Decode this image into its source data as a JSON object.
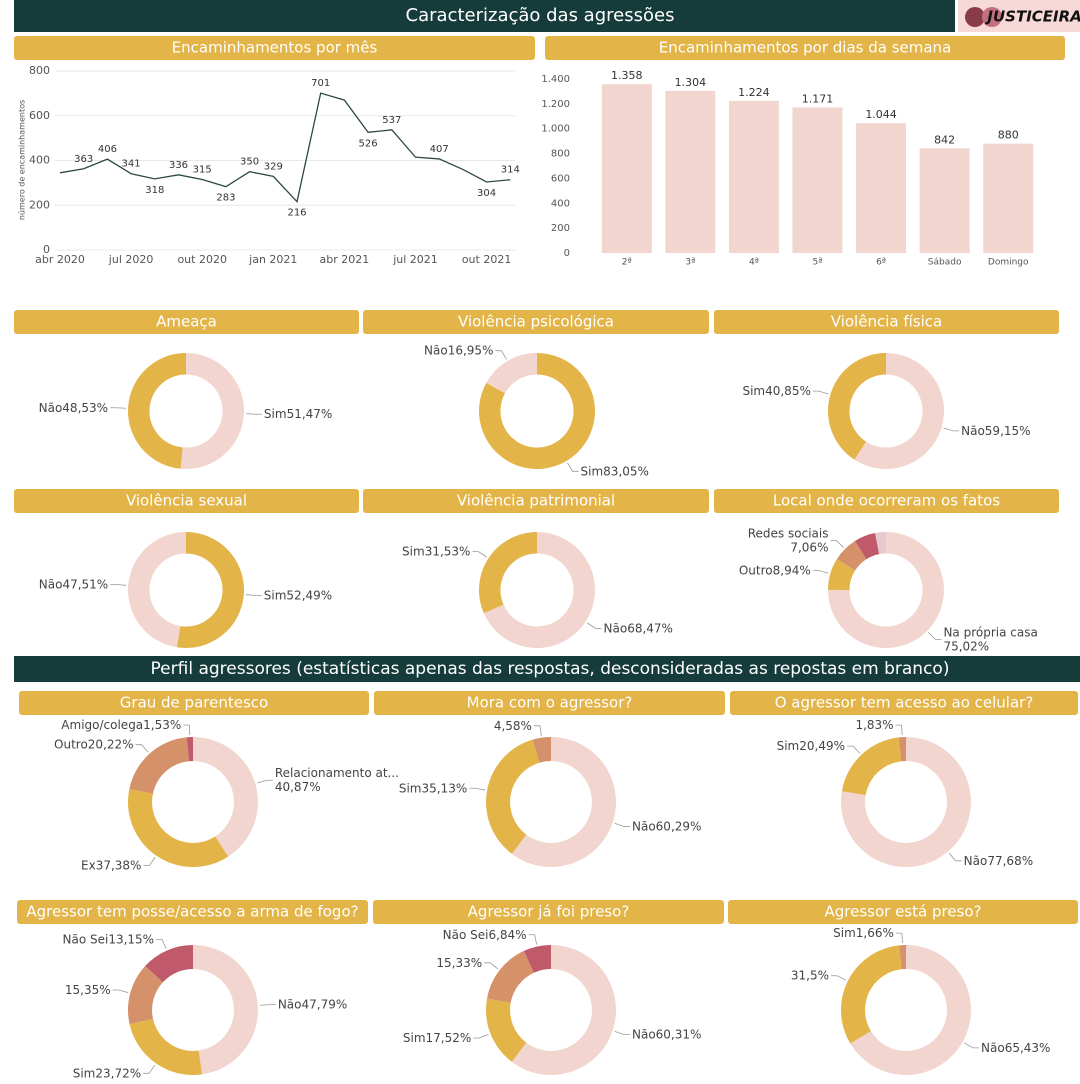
{
  "header": {
    "title": "Caracterização das agressões",
    "logo": "JUSTICEIRAS"
  },
  "section": {
    "title": "Perfil agressores (estatísticas apenas das respostas, desconsideradas as repostas em branco)"
  },
  "chart_data": [
    {
      "type": "line",
      "title": "Encaminhamentos por mês",
      "y_label": "número de encaminhamentos",
      "color": "#2d4a3e",
      "grid": true,
      "categories": [
        "abr 2020",
        null,
        null,
        "jul 2020",
        null,
        null,
        "out 2020",
        null,
        null,
        "jan 2021",
        null,
        null,
        "abr 2021",
        null,
        null,
        "jul 2021",
        null,
        null,
        "out 2021",
        null
      ],
      "values": [
        345,
        363,
        406,
        341,
        318,
        336,
        315,
        283,
        350,
        329,
        216,
        701,
        670,
        526,
        537,
        415,
        407,
        360,
        304,
        314
      ],
      "value_labels": [
        null,
        "363",
        "406",
        "341",
        "318",
        "336",
        "315",
        "283",
        "350",
        "329",
        "216",
        "701",
        null,
        "526",
        "537",
        null,
        "407",
        null,
        "304",
        "314"
      ],
      "ylim": [
        0,
        800
      ],
      "yticks": [
        0,
        200,
        400,
        600,
        800
      ]
    },
    {
      "type": "bar",
      "title": "Encaminhamentos por dias da semana",
      "color": "#f2d5cf",
      "grid": false,
      "categories": [
        "2ª",
        "3ª",
        "4ª",
        "5ª",
        "6ª",
        "Sábado",
        "Domingo"
      ],
      "values": [
        1358,
        1304,
        1224,
        1171,
        1044,
        842,
        880
      ],
      "value_labels": [
        "1.358",
        "1.304",
        "1.224",
        "1.171",
        "1.044",
        "842",
        "880"
      ],
      "ylim": [
        0,
        1400
      ],
      "yticks": [
        0,
        200,
        400,
        600,
        800,
        {
          "value": 1000,
          "label": "1.000"
        },
        {
          "value": 1200,
          "label": "1.200"
        },
        {
          "value": 1400,
          "label": "1.400"
        }
      ]
    },
    {
      "type": "pie",
      "title": "Ameaça",
      "categories": [
        "Sim",
        "Não"
      ],
      "values": [
        51.47,
        48.53
      ],
      "value_labels": [
        "51,47%",
        "48,53%"
      ],
      "colors": [
        "#f2d5cf",
        "#e3b448"
      ]
    },
    {
      "type": "pie",
      "title": "Violência psicológica",
      "categories": [
        "Sim",
        "Não"
      ],
      "values": [
        83.05,
        16.95
      ],
      "value_labels": [
        "83,05%",
        "16,95%"
      ],
      "colors": [
        "#e3b448",
        "#f2d5cf"
      ]
    },
    {
      "type": "pie",
      "title": "Violência física",
      "categories": [
        "Não",
        "Sim"
      ],
      "values": [
        59.15,
        40.85
      ],
      "value_labels": [
        "59,15%",
        "40,85%"
      ],
      "colors": [
        "#f2d5cf",
        "#e3b448"
      ]
    },
    {
      "type": "pie",
      "title": "Violência sexual",
      "categories": [
        "Sim",
        "Não"
      ],
      "values": [
        52.49,
        47.51
      ],
      "value_labels": [
        "52,49%",
        "47,51%"
      ],
      "colors": [
        "#e3b448",
        "#f2d5cf"
      ]
    },
    {
      "type": "pie",
      "title": "Violência patrimonial",
      "categories": [
        "Não",
        "Sim"
      ],
      "values": [
        68.47,
        31.53
      ],
      "value_labels": [
        "68,47%",
        "31,53%"
      ],
      "colors": [
        "#f2d5cf",
        "#e3b448"
      ]
    },
    {
      "type": "pie",
      "title": "Local onde ocorreram os fatos",
      "categories": [
        "Na própria casa",
        "Outro",
        "Redes sociais",
        null,
        null
      ],
      "values": [
        75.02,
        8.94,
        7.06,
        5.98,
        3.0
      ],
      "value_labels": [
        "75,02%",
        "8,94%",
        "7,06%",
        null,
        null
      ],
      "colors": [
        "#f2d5cf",
        "#e3b448",
        "#d4916a",
        "#c0596a",
        "#e8c9d0"
      ]
    },
    {
      "type": "pie",
      "title": "Grau de parentesco",
      "categories": [
        "Relacionamento at...",
        "Ex",
        "Outro",
        "Amigo/colega"
      ],
      "values": [
        40.87,
        37.38,
        20.22,
        1.53
      ],
      "value_labels": [
        "40,87%",
        "37,38%",
        "20,22%",
        "1,53%"
      ],
      "colors": [
        "#f2d5cf",
        "#e3b448",
        "#d4916a",
        "#c0596a"
      ]
    },
    {
      "type": "pie",
      "title": "Mora com o agressor?",
      "categories": [
        "Não",
        "Sim",
        null
      ],
      "values": [
        60.29,
        35.13,
        4.58
      ],
      "value_labels": [
        "60,29%",
        "35,13%",
        "4,58%"
      ],
      "colors": [
        "#f2d5cf",
        "#e3b448",
        "#d4916a"
      ]
    },
    {
      "type": "pie",
      "title": "O agressor tem acesso ao celular?",
      "categories": [
        "Não",
        "Sim",
        null
      ],
      "values": [
        77.68,
        20.49,
        1.83
      ],
      "value_labels": [
        "77,68%",
        "20,49%",
        "1,83%"
      ],
      "colors": [
        "#f2d5cf",
        "#e3b448",
        "#d4916a"
      ]
    },
    {
      "type": "pie",
      "title": "Agressor tem posse/acesso a arma de fogo?",
      "categories": [
        "Não",
        "Sim",
        null,
        "Não Sei"
      ],
      "values": [
        47.79,
        23.72,
        15.35,
        13.15
      ],
      "value_labels": [
        "47,79%",
        "23,72%",
        "15,35%",
        "13,15%"
      ],
      "colors": [
        "#f2d5cf",
        "#e3b448",
        "#d4916a",
        "#c0596a"
      ]
    },
    {
      "type": "pie",
      "title": "Agressor já foi preso?",
      "categories": [
        "Não",
        "Sim",
        null,
        "Não Sei"
      ],
      "values": [
        60.31,
        17.52,
        15.33,
        6.84
      ],
      "value_labels": [
        "60,31%",
        "17,52%",
        "15,33%",
        "6,84%"
      ],
      "colors": [
        "#f2d5cf",
        "#e3b448",
        "#d4916a",
        "#c0596a"
      ]
    },
    {
      "type": "pie",
      "title": "Agressor está preso?",
      "categories": [
        "Não",
        null,
        "Sim"
      ],
      "values": [
        65.43,
        31.5,
        1.66
      ],
      "value_labels": [
        "65,43%",
        "31,5%",
        "1,66%"
      ],
      "colors": [
        "#f2d5cf",
        "#e3b448",
        "#d4916a"
      ]
    }
  ]
}
